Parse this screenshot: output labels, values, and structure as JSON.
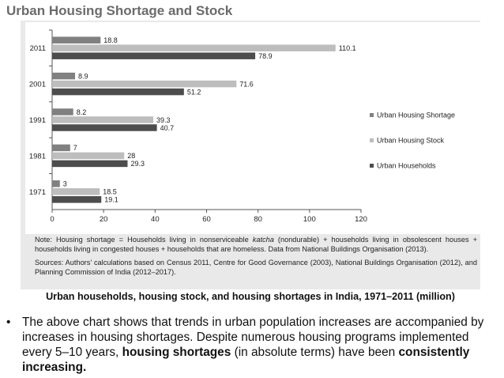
{
  "slide": {
    "title": "Urban Housing Shortage and Stock"
  },
  "notes": {
    "note_prefix": "Note: Housing shortage = Households living in nonserviceable ",
    "note_italic": "katcha",
    "note_suffix": " (nondurable) + households living in obsolescent houses + households living in congested houses + households that are homeless. Data from National Buildings Organisation (2013).",
    "sources": "Sources: Authors’ calculations based on Census 2011, Centre for Good Governance (2003), National Buildings Organisation (2012), and Planning Commission of India (2012–2017)."
  },
  "caption": "Urban households, housing stock, and housing shortages in India, 1971–2011 (million)",
  "bullet": {
    "symbol": "•",
    "part1": "The above chart shows that trends in urban population increases are accompanied by increases in housing shortages. Despite numerous housing programs implemented every 5–10 years, ",
    "bold1": "housing shortages",
    "part2": " (in absolute terms) have been ",
    "bold2": "consistently increasing."
  },
  "chart_data": {
    "type": "bar",
    "orientation": "horizontal",
    "categories": [
      "2011",
      "2001",
      "1991",
      "1981",
      "1971"
    ],
    "series": [
      {
        "name": "Urban Housing Shortage",
        "color": "#808080",
        "values": [
          18.8,
          8.9,
          8.2,
          7,
          3
        ],
        "labels": [
          "18.8",
          "8.9",
          "8.2",
          "7",
          "3"
        ]
      },
      {
        "name": "Urban Housing Stock",
        "color": "#bdbdbd",
        "values": [
          110.1,
          71.6,
          39.3,
          28,
          18.5
        ],
        "labels": [
          "110.1",
          "71.6",
          "39.3",
          "28",
          "18.5"
        ]
      },
      {
        "name": "Urban Households",
        "color": "#4d4d4d",
        "values": [
          78.9,
          51.2,
          40.7,
          29.3,
          19.1
        ],
        "labels": [
          "78.9",
          "51.2",
          "40.7",
          "29.3",
          "19.1"
        ]
      }
    ],
    "xlim": [
      0,
      120
    ],
    "xticks": [
      "0",
      "20",
      "40",
      "60",
      "80",
      "100",
      "120"
    ],
    "grid": false,
    "legend_position": "right"
  }
}
